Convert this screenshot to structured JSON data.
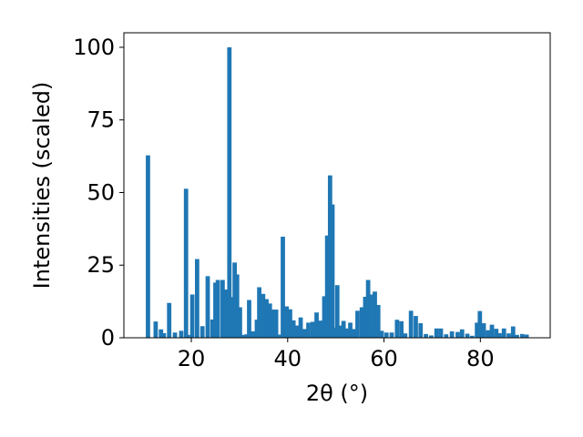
{
  "chart_data": {
    "type": "bar",
    "title": "",
    "xlabel": "2θ (°)",
    "ylabel": "Intensities (scaled)",
    "xlim": [
      6.0,
      94.5
    ],
    "ylim": [
      0,
      105
    ],
    "xticks": [
      20,
      40,
      60,
      80
    ],
    "yticks": [
      0,
      25,
      50,
      75,
      100
    ],
    "xtick_labels": [
      "20",
      "40",
      "60",
      "80"
    ],
    "ytick_labels": [
      "0",
      "25",
      "50",
      "75",
      "100"
    ],
    "bar_width": 0.9,
    "grid": false,
    "legend": "none",
    "color": "#1f77b4",
    "x": [
      11.0,
      12.6,
      13.7,
      14.3,
      15.4,
      16.6,
      17.9,
      18.9,
      19.3,
      20.2,
      21.2,
      22.3,
      23.4,
      24.4,
      25.0,
      25.5,
      26.5,
      27.3,
      27.9,
      28.4,
      29.0,
      29.5,
      30.1,
      30.9,
      31.5,
      32.0,
      32.8,
      33.6,
      34.1,
      34.9,
      35.6,
      36.3,
      37.0,
      37.6,
      38.3,
      39.0,
      39.8,
      40.5,
      41.2,
      41.9,
      42.7,
      43.5,
      44.3,
      45.2,
      46.0,
      46.8,
      47.6,
      48.2,
      48.8,
      49.3,
      49.7,
      50.3,
      51.0,
      51.6,
      52.3,
      53.0,
      53.7,
      54.5,
      55.4,
      56.1,
      56.7,
      57.3,
      58.1,
      58.8,
      59.5,
      60.5,
      61.6,
      62.7,
      63.6,
      64.4,
      65.6,
      66.6,
      67.6,
      68.7,
      69.8,
      70.9,
      71.8,
      72.9,
      74.1,
      75.3,
      76.2,
      77.3,
      78.3,
      79.3,
      79.9,
      80.7,
      81.6,
      82.4,
      83.3,
      84.0,
      84.9,
      85.9,
      86.8,
      87.6,
      88.7,
      89.6
    ],
    "values": [
      62.8,
      5.6,
      2.9,
      1.6,
      12.0,
      1.8,
      2.4,
      51.3,
      1.0,
      14.9,
      27.1,
      4.0,
      21.2,
      6.3,
      19.0,
      19.9,
      19.9,
      16.6,
      100.0,
      14.0,
      25.9,
      21.8,
      10.5,
      1.0,
      1.2,
      13.0,
      2.2,
      6.2,
      17.4,
      15.1,
      13.3,
      11.8,
      9.7,
      9.7,
      1.1,
      34.8,
      10.8,
      9.8,
      6.0,
      4.2,
      7.0,
      3.0,
      5.2,
      5.5,
      8.7,
      5.9,
      14.3,
      35.2,
      55.9,
      45.9,
      3.5,
      18.1,
      4.2,
      5.8,
      3.2,
      5.2,
      3.0,
      9.3,
      10.5,
      14.1,
      19.9,
      14.9,
      15.9,
      11.3,
      2.4,
      1.8,
      1.8,
      6.2,
      5.7,
      1.5,
      9.3,
      7.5,
      5.0,
      1.3,
      0.8,
      3.2,
      3.2,
      1.2,
      2.2,
      2.0,
      2.9,
      1.4,
      0.7,
      5.2,
      9.2,
      5.0,
      2.6,
      4.5,
      3.1,
      1.6,
      3.2,
      1.5,
      3.9,
      1.0,
      1.3,
      1.1
    ]
  }
}
